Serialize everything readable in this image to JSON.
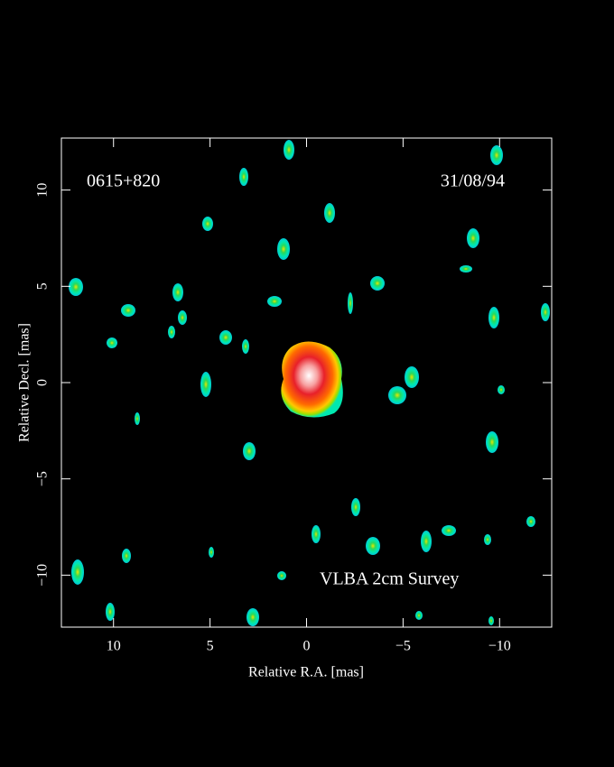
{
  "chart_data": {
    "type": "image",
    "annotations": [
      "0615+820",
      "31/08/94",
      "VLBA 2cm Survey"
    ],
    "x_label": "Relative R.A. [mas]",
    "y_label": "Relative Decl. [mas]",
    "xlim": [
      12.7,
      -12.7
    ],
    "ylim": [
      -12.7,
      12.7
    ],
    "xticks": [
      10,
      5,
      0,
      {
        "value": -5,
        "label": "−5"
      },
      {
        "value": -10,
        "label": "−10"
      }
    ],
    "yticks": [
      {
        "value": -10,
        "label": "−10"
      },
      {
        "value": -5,
        "label": "−5"
      },
      0,
      5,
      10
    ]
  }
}
